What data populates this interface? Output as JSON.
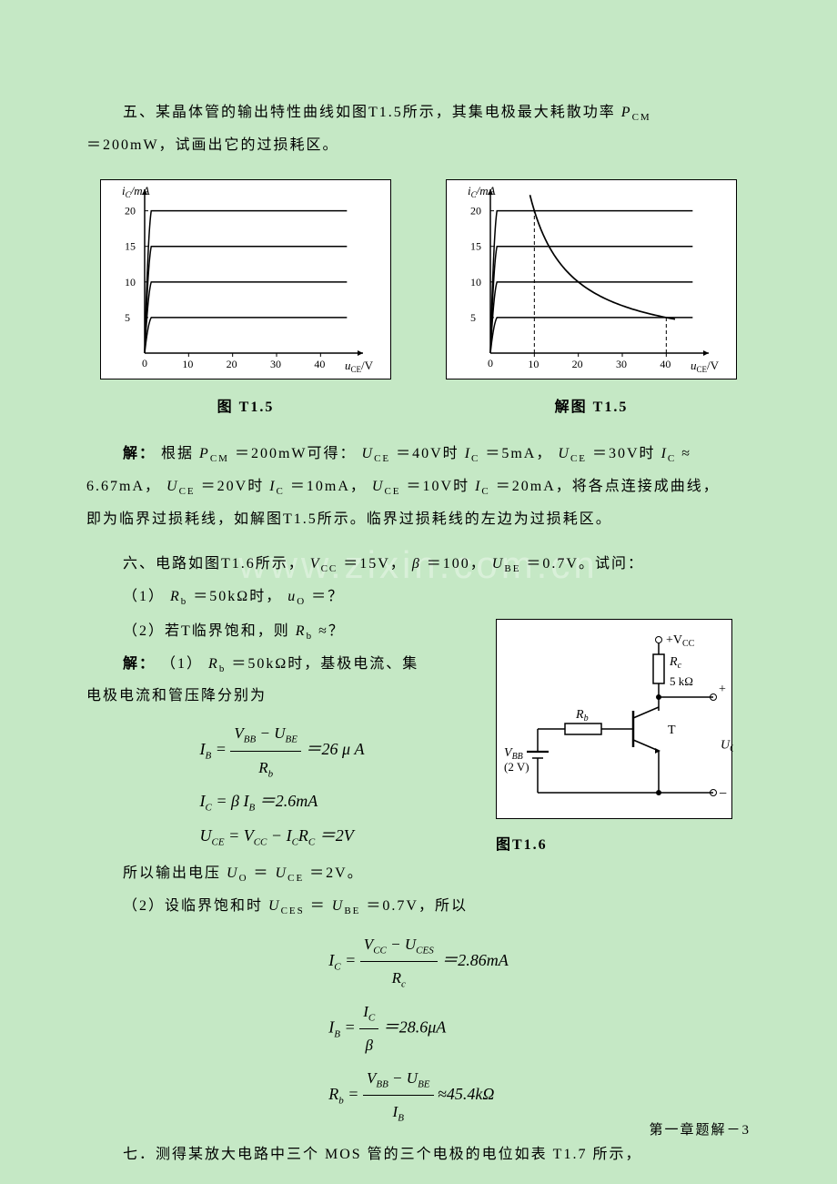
{
  "problem5": {
    "text_line1": "五、某晶体管的输出特性曲线如图T1.5所示，其集电极最大耗散功率",
    "pcm_label": "P",
    "pcm_sub": "CM",
    "text_line2": "＝200mW，试画出它的过损耗区。"
  },
  "chart_left": {
    "type": "line",
    "label": "图 T1.5",
    "y_axis_label": "i",
    "y_axis_sub": "C",
    "y_axis_unit": "/mA",
    "x_axis_label": "u",
    "x_axis_sub": "CE",
    "x_axis_unit": "/V",
    "xlim": [
      0,
      48
    ],
    "ylim": [
      0,
      22
    ],
    "xticks": [
      0,
      10,
      20,
      30,
      40
    ],
    "yticks": [
      0,
      5,
      10,
      15,
      20
    ],
    "curves_y": [
      5,
      10,
      15,
      20
    ],
    "rise_x": 1.5,
    "background_color": "#ffffff",
    "line_color": "#000000",
    "line_width": 1.5,
    "tick_fontsize": 12,
    "label_fontsize": 13
  },
  "chart_right": {
    "type": "line",
    "label": "解图 T1.5",
    "y_axis_label": "i",
    "y_axis_sub": "C",
    "y_axis_unit": "/mA",
    "x_axis_label": "u",
    "x_axis_sub": "CE",
    "x_axis_unit": "/V",
    "xlim": [
      0,
      48
    ],
    "ylim": [
      0,
      22
    ],
    "xticks": [
      0,
      10,
      20,
      30,
      40
    ],
    "yticks": [
      0,
      5,
      10,
      15,
      20
    ],
    "curves_y": [
      5,
      10,
      15,
      20
    ],
    "rise_x": 1.5,
    "hyperbola_product": 200,
    "hyperbola_xrange": [
      9,
      42
    ],
    "vline1_x": 10,
    "vline1_yrange": [
      0,
      20
    ],
    "vline2_x": 40,
    "vline2_yrange": [
      0,
      5
    ],
    "dash_pattern": "4,3",
    "background_color": "#ffffff",
    "line_color": "#000000",
    "line_width": 1.5,
    "tick_fontsize": 12,
    "label_fontsize": 13
  },
  "solution5": {
    "prefix": "解：",
    "line1_a": "根据",
    "line1_b": "＝200mW可得：",
    "line1_c": "＝40V时",
    "line1_d": "＝5mA，",
    "line1_e": "＝30V时",
    "line1_f": "≈",
    "line2_a": "6.67mA，",
    "line2_b": "＝20V时",
    "line2_c": "＝10mA，",
    "line2_d": "＝10V时",
    "line2_e": "＝20mA，将各点连接成曲线，",
    "line3": "即为临界过损耗线，如解图T1.5所示。临界过损耗线的左边为过损耗区。",
    "P_label": "P",
    "P_sub": "CM",
    "UCE_label": "U",
    "UCE_sub": "CE",
    "IC_label": "I",
    "IC_sub": "C"
  },
  "problem6": {
    "intro": "六、电路如图T1.6所示，",
    "vcc": "＝15V，",
    "beta_label": "β",
    "beta_val": "＝100，",
    "ube": "＝0.7V。试问：",
    "VCC_label": "V",
    "VCC_sub": "CC",
    "UBE_label": "U",
    "UBE_sub": "BE",
    "q1": "（1）",
    "Rb_label": "R",
    "Rb_sub": "b",
    "q1_val": "＝50kΩ时，",
    "uo_label": "u",
    "uo_sub": "O",
    "q1_end": "＝？",
    "q2": "（2）若T临界饱和，则",
    "q2_end": "≈？"
  },
  "solution6": {
    "prefix": "解：",
    "part1_intro": "（1）",
    "part1_a": "＝50kΩ时，基极电流、集",
    "part1_line2": "电极电流和管压降分别为",
    "eq1_lhs": "I",
    "eq1_lhs_sub": "B",
    "eq1_num1": "V",
    "eq1_num1_sub": "BB",
    "eq1_num2": "U",
    "eq1_num2_sub": "BE",
    "eq1_den": "R",
    "eq1_den_sub": "b",
    "eq1_result": "＝26 μ A",
    "eq2_lhs": "I",
    "eq2_lhs_sub": "C",
    "eq2_rhs1": "β I",
    "eq2_rhs1_sub": "B",
    "eq2_result": "＝2.6mA",
    "eq3_lhs": "U",
    "eq3_lhs_sub": "CE",
    "eq3_rhs1": "V",
    "eq3_rhs1_sub": "CC",
    "eq3_rhs2": "I",
    "eq3_rhs2_sub": "C",
    "eq3_rhs3": "R",
    "eq3_rhs3_sub": "C",
    "eq3_result": "＝2V",
    "output_text": "所以输出电压",
    "UO_label": "U",
    "UO_sub": "O",
    "output_eq": "＝",
    "output_val": "＝2V。",
    "part2_intro": "（2）设临界饱和时",
    "UCES_label": "U",
    "UCES_sub": "CES",
    "part2_eq": "＝",
    "part2_val": "＝0.7V，所以",
    "eq4_lhs": "I",
    "eq4_lhs_sub": "C",
    "eq4_num1": "V",
    "eq4_num1_sub": "CC",
    "eq4_num2": "U",
    "eq4_num2_sub": "CES",
    "eq4_den": "R",
    "eq4_den_sub": "c",
    "eq4_result": "＝2.86mA",
    "eq5_lhs": "I",
    "eq5_lhs_sub": "B",
    "eq5_num": "I",
    "eq5_num_sub": "C",
    "eq5_den": "β",
    "eq5_result": "＝28.6μA",
    "eq6_lhs": "R",
    "eq6_lhs_sub": "b",
    "eq6_num1": "V",
    "eq6_num1_sub": "BB",
    "eq6_num2": "U",
    "eq6_num2_sub": "BE",
    "eq6_den": "I",
    "eq6_den_sub": "B",
    "eq6_result": "≈45.4kΩ"
  },
  "circuit": {
    "label": "图T1.6",
    "VCC_label": "+V",
    "VCC_sub": "CC",
    "Rc_label": "R",
    "Rc_sub": "c",
    "Rc_val": "5 kΩ",
    "Rb_label": "R",
    "Rb_sub": "b",
    "T_label": "T",
    "VBB_label": "V",
    "VBB_sub": "BB",
    "VBB_val": "(2 V)",
    "Uo_label": "U",
    "Uo_sub": "O",
    "plus": "+",
    "minus": "−",
    "node_color": "#000000",
    "line_color": "#000000",
    "background": "#ffffff",
    "fontsize": 14
  },
  "problem7": {
    "text": "七．测得某放大电路中三个 MOS 管的三个电极的电位如表 T1.7 所示，"
  },
  "footer": {
    "text": "第一章题解－3"
  },
  "watermark": "www.zixin.com.cn"
}
